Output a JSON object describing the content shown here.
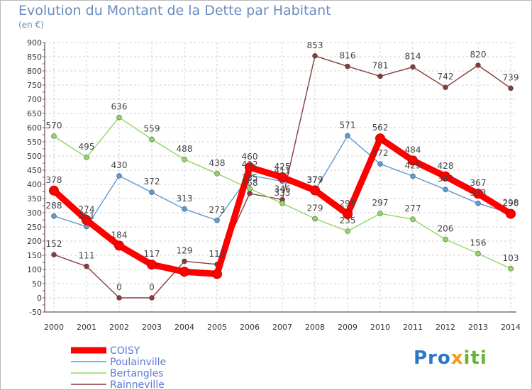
{
  "title": "Evolution du Montant de la Dette par Habitant",
  "subtitle": "(en €)",
  "logo": {
    "part1": "Pro",
    "part2": "x",
    "part3": "iti"
  },
  "chart_data": {
    "type": "line",
    "x": [
      "2000",
      "2001",
      "2002",
      "2003",
      "2004",
      "2005",
      "2006",
      "2007",
      "2008",
      "2009",
      "2010",
      "2011",
      "2012",
      "2013",
      "2014"
    ],
    "ylim": [
      -50,
      900
    ],
    "yticks": [
      -50,
      0,
      50,
      100,
      150,
      200,
      250,
      300,
      350,
      400,
      450,
      500,
      550,
      600,
      650,
      700,
      750,
      800,
      850,
      900
    ],
    "grid": true,
    "legend_position": "bottom-left",
    "series": [
      {
        "name": "COISY",
        "color": "#ff0000",
        "values": [
          378,
          274,
          184,
          117,
          92,
          84,
          460,
          425,
          379,
          295,
          562,
          484,
          428,
          367,
          296
        ],
        "labels_shown": [
          true,
          true,
          true,
          true,
          false,
          false,
          true,
          true,
          true,
          true,
          true,
          true,
          true,
          true,
          true
        ]
      },
      {
        "name": "Poulainville",
        "color": "#5b9bd5",
        "values": [
          288,
          251,
          430,
          372,
          313,
          273,
          432,
          411,
          377,
          571,
          472,
          429,
          382,
          333,
          298
        ],
        "labels_shown": [
          true,
          true,
          true,
          true,
          true,
          true,
          true,
          true,
          true,
          true,
          true,
          true,
          true,
          true,
          true
        ]
      },
      {
        "name": "Bertangles",
        "color": "#90d860",
        "values": [
          570,
          495,
          636,
          559,
          488,
          438,
          385,
          333,
          279,
          235,
          297,
          277,
          206,
          156,
          103
        ],
        "labels_shown": [
          true,
          true,
          true,
          true,
          true,
          true,
          true,
          true,
          true,
          true,
          true,
          true,
          true,
          true,
          true
        ]
      },
      {
        "name": "Rainneville",
        "color": "#8b3a3a",
        "values": [
          152,
          111,
          0,
          0,
          129,
          118,
          368,
          346,
          853,
          816,
          781,
          814,
          742,
          820,
          739
        ],
        "labels_shown": [
          true,
          true,
          true,
          true,
          true,
          true,
          true,
          true,
          true,
          true,
          true,
          true,
          true,
          true,
          true
        ]
      }
    ]
  }
}
